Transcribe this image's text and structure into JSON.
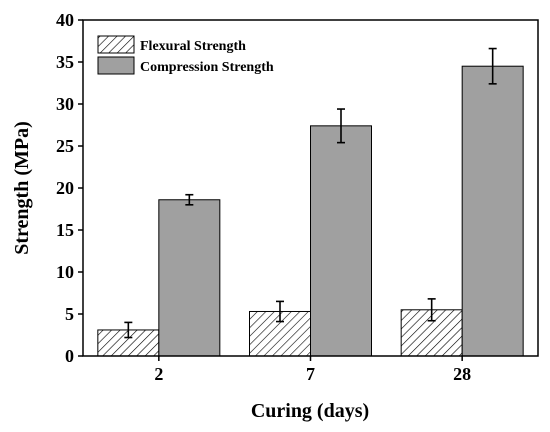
{
  "chart_data": {
    "type": "bar",
    "title": "",
    "xlabel": "Curing (days)",
    "ylabel": "Strength (MPa)",
    "categories": [
      "2",
      "7",
      "28"
    ],
    "ylim": [
      0,
      40
    ],
    "yticks": [
      "0",
      "5",
      "10",
      "15",
      "20",
      "25",
      "30",
      "35",
      "40"
    ],
    "grid": false,
    "legend_position": "top-left",
    "series": [
      {
        "name": "Flexural Strength",
        "values": [
          3.1,
          5.3,
          5.5
        ],
        "errors": [
          0.9,
          1.2,
          1.3
        ],
        "fill": "hatched",
        "color": "#ffffff"
      },
      {
        "name": "Compression Strength",
        "values": [
          18.6,
          27.4,
          34.5
        ],
        "errors": [
          0.6,
          2.0,
          2.1
        ],
        "fill": "solid",
        "color": "#a0a0a0"
      }
    ]
  }
}
